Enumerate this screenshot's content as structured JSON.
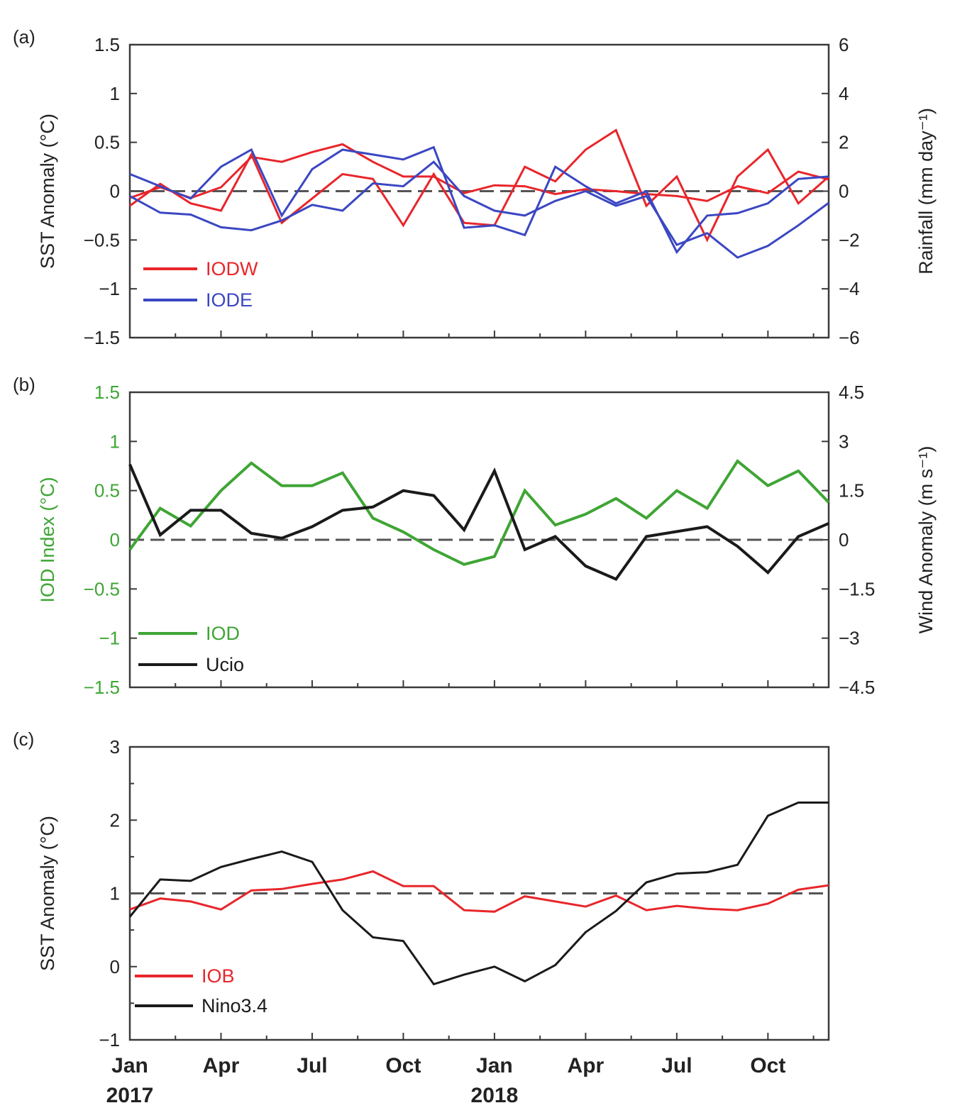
{
  "x_ticks": [
    "Jan",
    "Apr",
    "Jul",
    "Oct",
    "Jan",
    "Apr",
    "Jul",
    "Oct"
  ],
  "year_labels": [
    "2017",
    "2018"
  ],
  "chart_data": [
    {
      "type": "line",
      "panel_label": "(a)",
      "ylabel": "SST Anomaly (°C)",
      "ylim": [
        -1.5,
        1.5
      ],
      "yticks": [
        -1.5,
        -1,
        -0.5,
        0,
        0.5,
        1,
        1.5
      ],
      "ytick_labels": [
        "−1.5",
        "−1",
        "−0.5",
        "0",
        "0.5",
        "1",
        "1.5"
      ],
      "y2label": "Rainfall (mm day⁻¹)",
      "y2lim": [
        -6,
        6
      ],
      "y2ticks": [
        -6,
        -4,
        -2,
        0,
        2,
        4,
        6
      ],
      "y2tick_labels": [
        "−6",
        "−4",
        "−2",
        "0",
        "2",
        "4",
        "6"
      ],
      "x": [
        "2017-01",
        "2017-02",
        "2017-03",
        "2017-04",
        "2017-05",
        "2017-06",
        "2017-07",
        "2017-08",
        "2017-09",
        "2017-10",
        "2017-11",
        "2017-12",
        "2018-01",
        "2018-02",
        "2018-03",
        "2018-04",
        "2018-05",
        "2018-06",
        "2018-07",
        "2018-08",
        "2018-09",
        "2018-10",
        "2018-11",
        "2018-12"
      ],
      "zero_line": 0,
      "legend": [
        {
          "name": "IODW",
          "color": "#e8262b"
        },
        {
          "name": "IODE",
          "color": "#3b47c2"
        }
      ],
      "series": [
        {
          "name": "IODW",
          "color": "#e8262b",
          "axis": "left",
          "values": [
            -0.07,
            0.04,
            -0.07,
            0.04,
            0.35,
            0.3,
            0.4,
            0.48,
            0.3,
            0.15,
            0.15,
            -0.02,
            0.06,
            0.05,
            -0.03,
            0.02,
            0.0,
            -0.03,
            -0.05,
            -0.1,
            0.05,
            -0.02,
            0.2,
            0.12
          ]
        },
        {
          "name": "IODW",
          "color": "#e8262b",
          "axis": "right",
          "values": [
            -0.6,
            0.3,
            -0.5,
            -0.8,
            1.5,
            -1.3,
            -0.3,
            0.7,
            0.5,
            -1.4,
            0.7,
            -1.3,
            -1.4,
            1.0,
            0.4,
            1.7,
            2.5,
            -0.6,
            0.6,
            -2.0,
            0.6,
            1.7,
            -0.5,
            0.6
          ]
        },
        {
          "name": "IODE",
          "color": "#3b47c2",
          "axis": "left",
          "values": [
            -0.05,
            -0.22,
            -0.24,
            -0.37,
            -0.4,
            -0.3,
            -0.14,
            -0.2,
            0.08,
            0.05,
            0.3,
            -0.05,
            -0.2,
            -0.25,
            -0.1,
            0.0,
            -0.15,
            -0.05,
            -0.55,
            -0.43,
            -0.68,
            -0.56,
            -0.35,
            -0.12
          ]
        },
        {
          "name": "IODE",
          "color": "#3b47c2",
          "axis": "right",
          "values": [
            0.7,
            0.2,
            -0.3,
            1.0,
            1.7,
            -1.0,
            0.9,
            1.7,
            1.5,
            1.3,
            1.8,
            -1.5,
            -1.4,
            -1.8,
            1.0,
            0.2,
            -0.5,
            0.0,
            -2.5,
            -1.0,
            -0.9,
            -0.5,
            0.5,
            0.6
          ]
        }
      ]
    },
    {
      "type": "line",
      "panel_label": "(b)",
      "ylabel": "IOD Index (°C)",
      "ylabel_color": "#3fa535",
      "ylim": [
        -1.5,
        1.5
      ],
      "yticks": [
        -1.5,
        -1,
        -0.5,
        0,
        0.5,
        1,
        1.5
      ],
      "ytick_labels": [
        "−1.5",
        "−1",
        "−0.5",
        "0",
        "0.5",
        "1",
        "1.5"
      ],
      "y2label": "Wind Anomaly (m s⁻¹)",
      "y2lim": [
        -4.5,
        4.5
      ],
      "y2ticks": [
        -4.5,
        -3,
        -1.5,
        0,
        1.5,
        3,
        4.5
      ],
      "y2tick_labels": [
        "−4.5",
        "−3",
        "−1.5",
        "0",
        "1.5",
        "3",
        "4.5"
      ],
      "x": [
        "2017-01",
        "2017-02",
        "2017-03",
        "2017-04",
        "2017-05",
        "2017-06",
        "2017-07",
        "2017-08",
        "2017-09",
        "2017-10",
        "2017-11",
        "2017-12",
        "2018-01",
        "2018-02",
        "2018-03",
        "2018-04",
        "2018-05",
        "2018-06",
        "2018-07",
        "2018-08",
        "2018-09",
        "2018-10",
        "2018-11",
        "2018-12"
      ],
      "zero_line": 0,
      "legend": [
        {
          "name": "IOD",
          "color": "#3fa535"
        },
        {
          "name": "Ucio",
          "color": "#1a1a1a"
        }
      ],
      "series": [
        {
          "name": "IOD",
          "color": "#3fa535",
          "axis": "left",
          "values": [
            -0.1,
            0.32,
            0.14,
            0.5,
            0.78,
            0.55,
            0.55,
            0.68,
            0.22,
            0.08,
            -0.1,
            -0.25,
            -0.17,
            0.5,
            0.15,
            0.26,
            0.42,
            0.22,
            0.5,
            0.32,
            0.8,
            0.55,
            0.7,
            0.38
          ]
        },
        {
          "name": "Ucio",
          "color": "#1a1a1a",
          "axis": "right",
          "values": [
            2.3,
            0.15,
            0.9,
            0.9,
            0.2,
            0.05,
            0.4,
            0.9,
            1.0,
            1.5,
            1.35,
            0.3,
            2.1,
            -0.3,
            0.1,
            -0.8,
            -1.2,
            0.1,
            0.25,
            0.4,
            -0.2,
            -1.0,
            0.1,
            0.5
          ]
        }
      ]
    },
    {
      "type": "line",
      "panel_label": "(c)",
      "ylabel": "SST Anomaly (°C)",
      "ylim": [
        -1,
        3
      ],
      "yticks": [
        -1,
        0,
        1,
        2,
        3
      ],
      "ytick_labels": [
        "−1",
        "0",
        "1",
        "2",
        "3"
      ],
      "x": [
        "2017-01",
        "2017-02",
        "2017-03",
        "2017-04",
        "2017-05",
        "2017-06",
        "2017-07",
        "2017-08",
        "2017-09",
        "2017-10",
        "2017-11",
        "2017-12",
        "2018-01",
        "2018-02",
        "2018-03",
        "2018-04",
        "2018-05",
        "2018-06",
        "2018-07",
        "2018-08",
        "2018-09",
        "2018-10",
        "2018-11",
        "2018-12"
      ],
      "reference_line": 1,
      "legend": [
        {
          "name": "IOB",
          "color": "#e8262b"
        },
        {
          "name": "Nino3.4",
          "color": "#1a1a1a"
        }
      ],
      "series": [
        {
          "name": "IOB",
          "color": "#e8262b",
          "axis": "left",
          "values": [
            0.78,
            0.93,
            0.89,
            0.78,
            1.04,
            1.06,
            1.13,
            1.19,
            1.3,
            1.1,
            1.1,
            0.77,
            0.75,
            0.96,
            0.89,
            0.82,
            0.97,
            0.77,
            0.83,
            0.79,
            0.77,
            0.86,
            1.05,
            1.11
          ]
        },
        {
          "name": "Nino3.4",
          "color": "#1a1a1a",
          "axis": "left",
          "values": [
            0.68,
            1.19,
            1.17,
            1.36,
            1.47,
            1.57,
            1.43,
            0.77,
            0.4,
            0.35,
            -0.24,
            -0.11,
            0.0,
            -0.2,
            0.02,
            0.47,
            0.76,
            1.15,
            1.27,
            1.29,
            1.39,
            2.06,
            2.24,
            2.24
          ]
        }
      ]
    }
  ]
}
